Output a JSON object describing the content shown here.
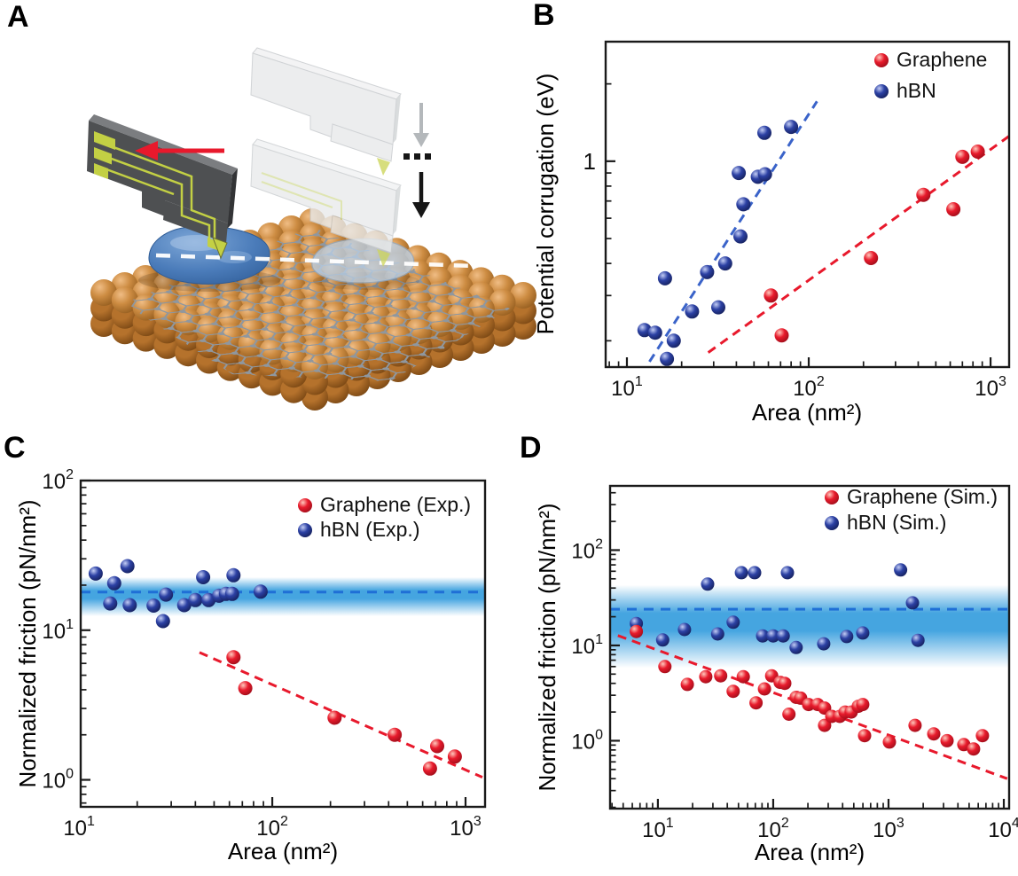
{
  "figure": {
    "background": "#ffffff",
    "panel_labels": [
      "A",
      "B",
      "C",
      "D"
    ]
  },
  "panel_a": {
    "label": "A",
    "description": "AFM chip sliding over nanoflakes on a graphene-covered metal substrate; ghost copies of the chip approach from above",
    "colors": {
      "substrate_light": "#f0bd85",
      "substrate_mid": "#cd8c42",
      "substrate_dark": "#8a5519",
      "substrate_side_mid": "#b5722c",
      "substrate_side_dark": "#6e3f0f",
      "lattice": "#8f979f",
      "chip_front": "#4e5052",
      "chip_top": "#7b7d80",
      "chip_side": "#333436",
      "circuit": "#c3d044",
      "flake_light": "#7fa8d8",
      "flake_mid": "#4b7cba",
      "flake_dark": "#2f5c96",
      "flake_ghost": "#b9cfe6",
      "flake_ghost_edge": "#8fa9c4",
      "ghost_chip_front": "#e9ebec",
      "ghost_chip_top": "#f1f2f3",
      "ghost_chip_side": "#d3d6d8",
      "ghost_chip_edge": "#c9cccf",
      "ghost_tip": "#cdd65e",
      "arrow_red": "#e8192c",
      "arrow_gray": "#b4b8bb",
      "arrow_black": "#161616",
      "scan_dash": "#ffffff"
    }
  },
  "chart_colors": {
    "red_main": "#e81b2c",
    "red_light": "#ffc9bd",
    "red_dark": "#8f0a16",
    "blue_main": "#2c41a4",
    "blue_light": "#c3cdf5",
    "blue_dark": "#10194d",
    "frame": "#1a1a1a",
    "trend_red": "#e8192c",
    "trend_blue_b": "#3a63c9",
    "hline_blue": "#1f6fd6",
    "band_blue": "#379ede"
  },
  "chart_data": [
    {
      "panel": "B",
      "type": "scatter",
      "xlabel": "Area (nm²)",
      "ylabel": "Potential corrugation (eV)",
      "xscale": "log",
      "yscale": "log",
      "grid": false,
      "xlim": [
        7.64,
        1265
      ],
      "ylim": [
        0.158,
        2.92
      ],
      "x_ticks": [
        10,
        100,
        1000
      ],
      "x_tick_format": "pow",
      "y_ticks": [
        1
      ],
      "y_tick_format": "plain",
      "legend": {
        "position": "top-right",
        "entries": [
          {
            "label": "Graphene",
            "color": "red"
          },
          {
            "label": "hBN",
            "color": "blue"
          }
        ]
      },
      "series": [
        {
          "name": "hBN",
          "color": "blue",
          "points": [
            [
              12.5,
              0.22
            ],
            [
              14.3,
              0.215
            ],
            [
              16.2,
              0.35
            ],
            [
              16.6,
              0.17
            ],
            [
              18.1,
              0.2
            ],
            [
              22.8,
              0.26
            ],
            [
              27.6,
              0.37
            ],
            [
              31.8,
              0.27
            ],
            [
              34.7,
              0.4
            ],
            [
              42.1,
              0.51
            ],
            [
              41.2,
              0.9
            ],
            [
              43.7,
              0.68
            ],
            [
              52.5,
              0.87
            ],
            [
              57.5,
              0.89
            ],
            [
              57,
              1.29
            ],
            [
              80,
              1.36
            ]
          ]
        },
        {
          "name": "Graphene",
          "color": "red",
          "points": [
            [
              62,
              0.3
            ],
            [
              71,
              0.21
            ],
            [
              220,
              0.42
            ],
            [
              427,
              0.74
            ],
            [
              624,
              0.65
            ],
            [
              700,
              1.04
            ],
            [
              850,
              1.09
            ]
          ]
        }
      ],
      "trend_lines": [
        {
          "series": "hBN",
          "color": "#3a63c9",
          "from": [
            12,
            0.148
          ],
          "to": [
            111,
            1.71
          ]
        },
        {
          "series": "Graphene",
          "color": "#e8192c",
          "from": [
            28,
            0.18
          ],
          "to": [
            1260,
            1.25
          ]
        }
      ]
    },
    {
      "panel": "C",
      "type": "scatter",
      "xlabel": "Area (nm²)",
      "ylabel": "Normalized friction (pN/nm²)",
      "xscale": "log",
      "yscale": "log",
      "grid": false,
      "xlim": [
        10.2,
        1262
      ],
      "ylim": [
        0.66,
        100
      ],
      "x_ticks": [
        10,
        100,
        1000
      ],
      "x_tick_format": "pow",
      "y_ticks": [
        1,
        10,
        100
      ],
      "y_tick_format": "pow",
      "legend": {
        "position": "top-right",
        "entries": [
          {
            "label": "Graphene (Exp.)",
            "color": "red"
          },
          {
            "label": "hBN (Exp.)",
            "color": "blue"
          }
        ]
      },
      "hband": {
        "line_y": 18,
        "band": [
          12.4,
          22.6
        ]
      },
      "series": [
        {
          "name": "hBN (Exp.)",
          "color": "blue",
          "points": [
            [
              12.2,
              23.9
            ],
            [
              14.5,
              15.1
            ],
            [
              15.2,
              20.6
            ],
            [
              17.8,
              26.8
            ],
            [
              18.3,
              14.7
            ],
            [
              24.3,
              14.6
            ],
            [
              27.2,
              11.5
            ],
            [
              28.2,
              17.3
            ],
            [
              35,
              14.7
            ],
            [
              40,
              15.9
            ],
            [
              43.9,
              22.6
            ],
            [
              46.8,
              15.9
            ],
            [
              53,
              17
            ],
            [
              57.6,
              17.5
            ],
            [
              62,
              17.5
            ],
            [
              63,
              23.3
            ],
            [
              87,
              18.1
            ]
          ]
        },
        {
          "name": "Graphene (Exp.)",
          "color": "red",
          "points": [
            [
              63,
              6.6
            ],
            [
              72.5,
              4.1
            ],
            [
              210,
              2.6
            ],
            [
              430,
              2.0
            ],
            [
              655,
              1.19
            ],
            [
              713,
              1.68
            ],
            [
              880,
              1.43
            ]
          ]
        }
      ],
      "trend_lines": [
        {
          "series": "Graphene (Exp.)",
          "color": "#e8192c",
          "from": [
            42,
            7.1
          ],
          "to": [
            1222,
            1.04
          ]
        }
      ]
    },
    {
      "panel": "D",
      "type": "scatter",
      "xlabel": "Area (nm²)",
      "ylabel": "Normalized friction (pN/nm²)",
      "xscale": "log",
      "yscale": "log",
      "grid": false,
      "xlim": [
        3.85,
        11120
      ],
      "ylim": [
        0.194,
        472
      ],
      "x_ticks": [
        10,
        100,
        1000,
        10000
      ],
      "x_tick_format": "pow",
      "y_ticks": [
        1,
        10,
        100
      ],
      "y_tick_format": "pow",
      "legend": {
        "position": "top-right",
        "entries": [
          {
            "label": "Graphene (Sim.)",
            "color": "red"
          },
          {
            "label": "hBN (Sim.)",
            "color": "blue"
          }
        ]
      },
      "hband": {
        "line_y": 24,
        "band": [
          5.8,
          43
        ]
      },
      "series": [
        {
          "name": "hBN (Sim.)",
          "color": "blue",
          "points": [
            [
              6.5,
              17
            ],
            [
              11,
              11.4
            ],
            [
              17,
              14.7
            ],
            [
              27,
              44
            ],
            [
              33,
              13.2
            ],
            [
              45,
              17.5
            ],
            [
              53,
              58
            ],
            [
              69,
              58
            ],
            [
              81,
              12.6
            ],
            [
              100,
              12.6
            ],
            [
              122,
              12.6
            ],
            [
              133,
              58
            ],
            [
              158,
              9.5
            ],
            [
              274,
              10.4
            ],
            [
              434,
              12.4
            ],
            [
              598,
              13.5
            ],
            [
              1274,
              62
            ],
            [
              1615,
              28
            ],
            [
              1800,
              11.3
            ]
          ]
        },
        {
          "name": "Graphene (Sim.)",
          "color": "red",
          "points": [
            [
              6.5,
              14
            ],
            [
              11.5,
              6.0
            ],
            [
              18,
              3.9
            ],
            [
              26,
              4.7
            ],
            [
              35,
              4.8
            ],
            [
              45,
              3.3
            ],
            [
              55,
              4.7
            ],
            [
              71,
              2.5
            ],
            [
              84,
              3.5
            ],
            [
              97,
              4.8
            ],
            [
              115,
              4.1
            ],
            [
              126,
              4.0
            ],
            [
              137,
              1.9
            ],
            [
              158,
              2.85
            ],
            [
              173,
              2.8
            ],
            [
              203,
              2.4
            ],
            [
              243,
              2.4
            ],
            [
              279,
              2.2
            ],
            [
              279,
              1.45
            ],
            [
              322,
              1.8
            ],
            [
              378,
              1.8
            ],
            [
              420,
              2.0
            ],
            [
              475,
              2.0
            ],
            [
              547,
              2.3
            ],
            [
              598,
              2.4
            ],
            [
              620,
              1.13
            ],
            [
              1018,
              0.97
            ],
            [
              1700,
              1.45
            ],
            [
              2470,
              1.18
            ],
            [
              3220,
              1.0
            ],
            [
              4500,
              0.91
            ],
            [
              5470,
              0.82
            ],
            [
              6530,
              1.13
            ]
          ]
        }
      ],
      "trend_lines": [
        {
          "series": "Graphene (Sim.)",
          "color": "#e8192c",
          "from": [
            4.5,
            12.7
          ],
          "to": [
            10700,
            0.4
          ]
        }
      ]
    }
  ]
}
